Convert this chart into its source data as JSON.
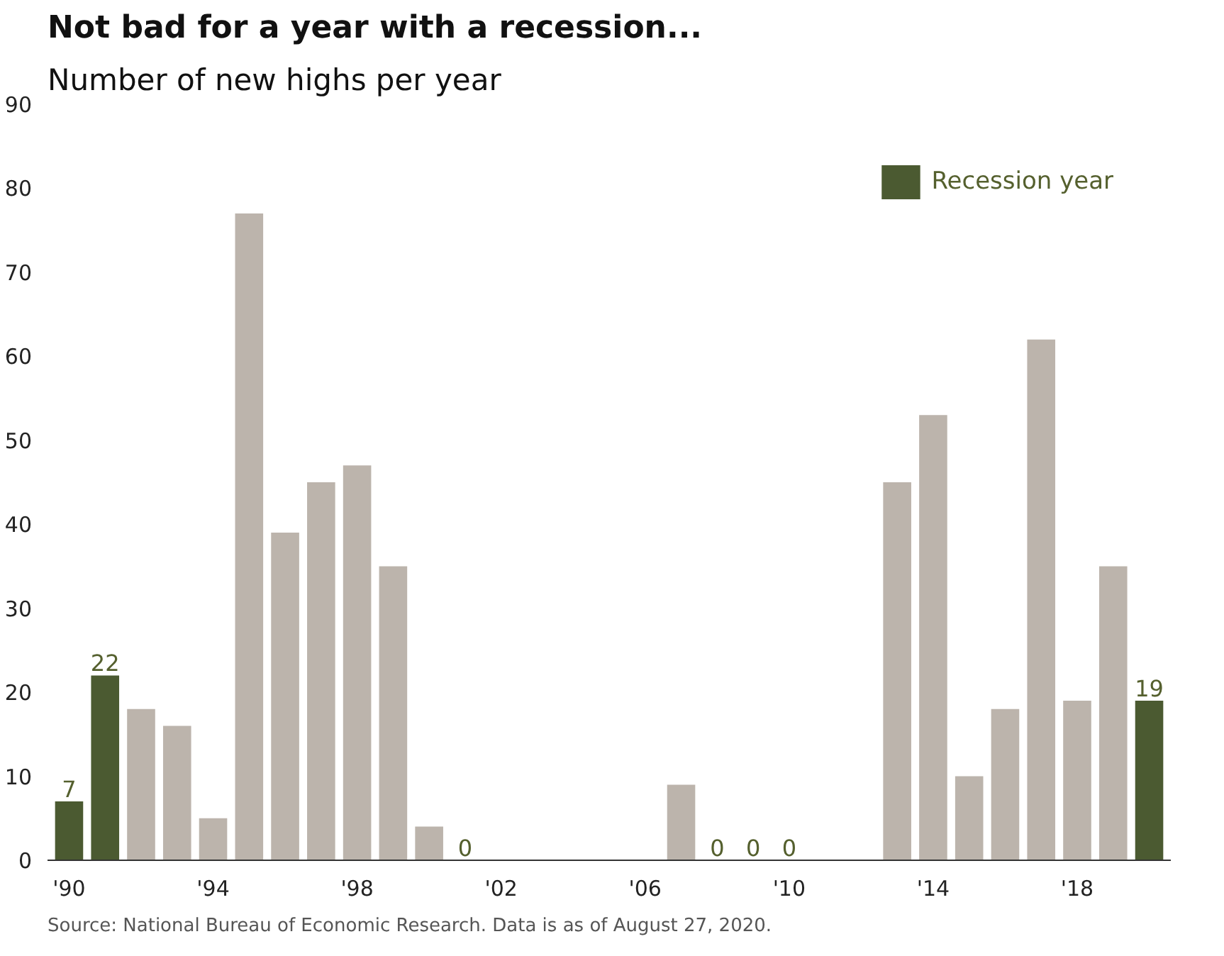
{
  "chart_data": {
    "type": "bar",
    "title": "Not bad for a year with a recession...",
    "subtitle": "Number of new highs per year",
    "x": [
      1990,
      1991,
      1992,
      1993,
      1994,
      1995,
      1996,
      1997,
      1998,
      1999,
      2000,
      2001,
      2002,
      2003,
      2004,
      2005,
      2006,
      2007,
      2008,
      2009,
      2010,
      2011,
      2012,
      2013,
      2014,
      2015,
      2016,
      2017,
      2018,
      2019,
      2020
    ],
    "series": [
      {
        "color": "#bcb4ac",
        "values": [
          null,
          null,
          18,
          16,
          5,
          77,
          39,
          45,
          47,
          35,
          4,
          0,
          0,
          0,
          0,
          0,
          0,
          9,
          0,
          0,
          0,
          0,
          0,
          45,
          53,
          10,
          18,
          62,
          19,
          35,
          null
        ],
        "value_labels": [
          null,
          null,
          null,
          null,
          null,
          null,
          null,
          null,
          null,
          null,
          null,
          "0",
          null,
          null,
          null,
          null,
          null,
          null,
          "0",
          "0",
          "0",
          null,
          null,
          null,
          null,
          null,
          null,
          null,
          null,
          null,
          null
        ]
      },
      {
        "name": "Recession year",
        "color": "#4b5a31",
        "values": [
          7,
          22,
          null,
          null,
          null,
          null,
          null,
          null,
          null,
          null,
          null,
          null,
          null,
          null,
          null,
          null,
          null,
          null,
          null,
          null,
          null,
          null,
          null,
          null,
          null,
          null,
          null,
          null,
          null,
          null,
          19
        ],
        "value_labels": [
          "7",
          "22",
          null,
          null,
          null,
          null,
          null,
          null,
          null,
          null,
          null,
          null,
          null,
          null,
          null,
          null,
          null,
          null,
          null,
          null,
          null,
          null,
          null,
          null,
          null,
          null,
          null,
          null,
          null,
          null,
          "19"
        ]
      }
    ],
    "xlim": [
      1989.4,
      2020.6
    ],
    "xticks": [
      {
        "value": 1990,
        "label": "'90"
      },
      {
        "value": 1994,
        "label": "'94"
      },
      {
        "value": 1998,
        "label": "'98"
      },
      {
        "value": 2002,
        "label": "'02"
      },
      {
        "value": 2006,
        "label": "'06"
      },
      {
        "value": 2010,
        "label": "'10"
      },
      {
        "value": 2014,
        "label": "'14"
      },
      {
        "value": 2018,
        "label": "'18"
      }
    ],
    "ylim": [
      0,
      90
    ],
    "yticks": [
      0,
      10,
      20,
      30,
      40,
      50,
      60,
      70,
      80,
      90
    ],
    "grid": false,
    "legend": "top right",
    "annotations": [
      "Source: National Bureau of Economic Research. Data is as of August 27, 2020."
    ]
  }
}
